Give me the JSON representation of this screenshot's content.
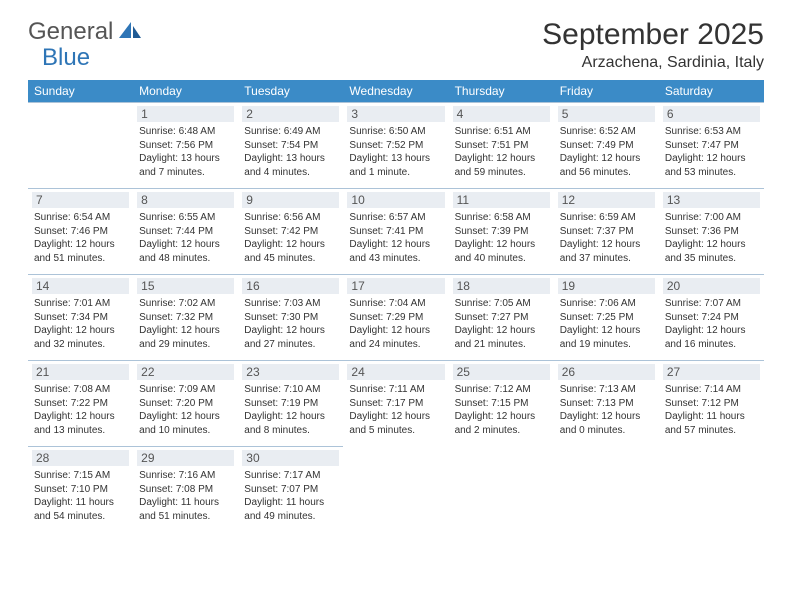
{
  "logo": {
    "text_gray": "General",
    "text_blue": "Blue"
  },
  "title": "September 2025",
  "location": "Arzachena, Sardinia, Italy",
  "colors": {
    "header_bg": "#3b8bc7",
    "header_text": "#ffffff",
    "border": "#acc3d8",
    "daynum_bg": "#e9edf2",
    "logo_gray": "#555555",
    "logo_blue": "#2e75b6"
  },
  "day_headers": [
    "Sunday",
    "Monday",
    "Tuesday",
    "Wednesday",
    "Thursday",
    "Friday",
    "Saturday"
  ],
  "weeks": [
    [
      {
        "empty": true
      },
      {
        "day": "1",
        "sunrise": "Sunrise: 6:48 AM",
        "sunset": "Sunset: 7:56 PM",
        "daylight": "Daylight: 13 hours and 7 minutes."
      },
      {
        "day": "2",
        "sunrise": "Sunrise: 6:49 AM",
        "sunset": "Sunset: 7:54 PM",
        "daylight": "Daylight: 13 hours and 4 minutes."
      },
      {
        "day": "3",
        "sunrise": "Sunrise: 6:50 AM",
        "sunset": "Sunset: 7:52 PM",
        "daylight": "Daylight: 13 hours and 1 minute."
      },
      {
        "day": "4",
        "sunrise": "Sunrise: 6:51 AM",
        "sunset": "Sunset: 7:51 PM",
        "daylight": "Daylight: 12 hours and 59 minutes."
      },
      {
        "day": "5",
        "sunrise": "Sunrise: 6:52 AM",
        "sunset": "Sunset: 7:49 PM",
        "daylight": "Daylight: 12 hours and 56 minutes."
      },
      {
        "day": "6",
        "sunrise": "Sunrise: 6:53 AM",
        "sunset": "Sunset: 7:47 PM",
        "daylight": "Daylight: 12 hours and 53 minutes."
      }
    ],
    [
      {
        "day": "7",
        "sunrise": "Sunrise: 6:54 AM",
        "sunset": "Sunset: 7:46 PM",
        "daylight": "Daylight: 12 hours and 51 minutes."
      },
      {
        "day": "8",
        "sunrise": "Sunrise: 6:55 AM",
        "sunset": "Sunset: 7:44 PM",
        "daylight": "Daylight: 12 hours and 48 minutes."
      },
      {
        "day": "9",
        "sunrise": "Sunrise: 6:56 AM",
        "sunset": "Sunset: 7:42 PM",
        "daylight": "Daylight: 12 hours and 45 minutes."
      },
      {
        "day": "10",
        "sunrise": "Sunrise: 6:57 AM",
        "sunset": "Sunset: 7:41 PM",
        "daylight": "Daylight: 12 hours and 43 minutes."
      },
      {
        "day": "11",
        "sunrise": "Sunrise: 6:58 AM",
        "sunset": "Sunset: 7:39 PM",
        "daylight": "Daylight: 12 hours and 40 minutes."
      },
      {
        "day": "12",
        "sunrise": "Sunrise: 6:59 AM",
        "sunset": "Sunset: 7:37 PM",
        "daylight": "Daylight: 12 hours and 37 minutes."
      },
      {
        "day": "13",
        "sunrise": "Sunrise: 7:00 AM",
        "sunset": "Sunset: 7:36 PM",
        "daylight": "Daylight: 12 hours and 35 minutes."
      }
    ],
    [
      {
        "day": "14",
        "sunrise": "Sunrise: 7:01 AM",
        "sunset": "Sunset: 7:34 PM",
        "daylight": "Daylight: 12 hours and 32 minutes."
      },
      {
        "day": "15",
        "sunrise": "Sunrise: 7:02 AM",
        "sunset": "Sunset: 7:32 PM",
        "daylight": "Daylight: 12 hours and 29 minutes."
      },
      {
        "day": "16",
        "sunrise": "Sunrise: 7:03 AM",
        "sunset": "Sunset: 7:30 PM",
        "daylight": "Daylight: 12 hours and 27 minutes."
      },
      {
        "day": "17",
        "sunrise": "Sunrise: 7:04 AM",
        "sunset": "Sunset: 7:29 PM",
        "daylight": "Daylight: 12 hours and 24 minutes."
      },
      {
        "day": "18",
        "sunrise": "Sunrise: 7:05 AM",
        "sunset": "Sunset: 7:27 PM",
        "daylight": "Daylight: 12 hours and 21 minutes."
      },
      {
        "day": "19",
        "sunrise": "Sunrise: 7:06 AM",
        "sunset": "Sunset: 7:25 PM",
        "daylight": "Daylight: 12 hours and 19 minutes."
      },
      {
        "day": "20",
        "sunrise": "Sunrise: 7:07 AM",
        "sunset": "Sunset: 7:24 PM",
        "daylight": "Daylight: 12 hours and 16 minutes."
      }
    ],
    [
      {
        "day": "21",
        "sunrise": "Sunrise: 7:08 AM",
        "sunset": "Sunset: 7:22 PM",
        "daylight": "Daylight: 12 hours and 13 minutes."
      },
      {
        "day": "22",
        "sunrise": "Sunrise: 7:09 AM",
        "sunset": "Sunset: 7:20 PM",
        "daylight": "Daylight: 12 hours and 10 minutes."
      },
      {
        "day": "23",
        "sunrise": "Sunrise: 7:10 AM",
        "sunset": "Sunset: 7:19 PM",
        "daylight": "Daylight: 12 hours and 8 minutes."
      },
      {
        "day": "24",
        "sunrise": "Sunrise: 7:11 AM",
        "sunset": "Sunset: 7:17 PM",
        "daylight": "Daylight: 12 hours and 5 minutes."
      },
      {
        "day": "25",
        "sunrise": "Sunrise: 7:12 AM",
        "sunset": "Sunset: 7:15 PM",
        "daylight": "Daylight: 12 hours and 2 minutes."
      },
      {
        "day": "26",
        "sunrise": "Sunrise: 7:13 AM",
        "sunset": "Sunset: 7:13 PM",
        "daylight": "Daylight: 12 hours and 0 minutes."
      },
      {
        "day": "27",
        "sunrise": "Sunrise: 7:14 AM",
        "sunset": "Sunset: 7:12 PM",
        "daylight": "Daylight: 11 hours and 57 minutes."
      }
    ],
    [
      {
        "day": "28",
        "sunrise": "Sunrise: 7:15 AM",
        "sunset": "Sunset: 7:10 PM",
        "daylight": "Daylight: 11 hours and 54 minutes."
      },
      {
        "day": "29",
        "sunrise": "Sunrise: 7:16 AM",
        "sunset": "Sunset: 7:08 PM",
        "daylight": "Daylight: 11 hours and 51 minutes."
      },
      {
        "day": "30",
        "sunrise": "Sunrise: 7:17 AM",
        "sunset": "Sunset: 7:07 PM",
        "daylight": "Daylight: 11 hours and 49 minutes."
      },
      {
        "empty": true
      },
      {
        "empty": true
      },
      {
        "empty": true
      },
      {
        "empty": true
      }
    ]
  ]
}
